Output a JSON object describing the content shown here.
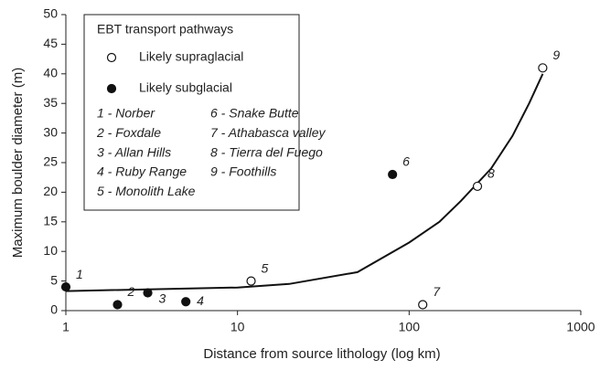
{
  "chart_data": {
    "type": "scatter",
    "x_label": "Distance from source lithology (log km)",
    "y_label": "Maximum boulder diameter (m)",
    "x_log": true,
    "xlim": [
      1,
      1000
    ],
    "xticks": [
      1,
      10,
      100,
      1000
    ],
    "ylim": [
      0,
      50
    ],
    "yticks": [
      0,
      5,
      10,
      15,
      20,
      25,
      30,
      35,
      40,
      45,
      50
    ],
    "grid": false,
    "legend_title": "EBT transport pathways",
    "legend_position": "upper left",
    "series": [
      {
        "name": "Likely supraglacial",
        "marker": "open",
        "color": "#111111",
        "x": [
          12,
          120,
          250,
          600
        ],
        "values": [
          5,
          1,
          21,
          41
        ],
        "point_labels": [
          "5",
          "7",
          "8",
          "9"
        ]
      },
      {
        "name": "Likely subglacial",
        "marker": "filled",
        "color": "#111111",
        "x": [
          1,
          2,
          3,
          5,
          80
        ],
        "values": [
          4,
          1,
          3,
          1.5,
          23
        ],
        "point_labels": [
          "1",
          "2",
          "3",
          "4",
          "6"
        ]
      }
    ],
    "trendline": {
      "color": "#111111",
      "x": [
        1,
        10,
        20,
        50,
        100,
        150,
        200,
        300,
        400,
        500,
        600
      ],
      "values": [
        3.3,
        3.9,
        4.5,
        6.5,
        11.5,
        15,
        18.5,
        24,
        29.5,
        35,
        40
      ]
    },
    "sites": [
      "1 - Norber",
      "2 - Foxdale",
      "3 - Allan Hills",
      "4 - Ruby Range",
      "5 - Monolith Lake",
      "6 - Snake Butte",
      "7 - Athabasca valley",
      "8 - Tierra del Fuego",
      "9 - Foothills"
    ]
  }
}
